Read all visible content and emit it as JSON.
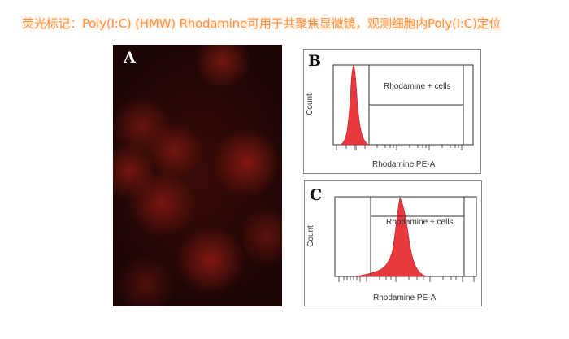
{
  "title": "荧光标记：Poly(I:C) (HMW) Rhodamine可用于共聚焦显微镜，观测细胞内Poly(I:C)定位",
  "colors": {
    "title": "#ff9440",
    "histogram_fill": "#e8393f",
    "micro_bg": "#1c0605"
  },
  "panels": {
    "a": {
      "letter": "A"
    },
    "b": {
      "letter": "B",
      "gate_label": "Rhodamine + cells",
      "x_label": "Rhodamine PE-A",
      "y_label": "Count"
    },
    "c": {
      "letter": "C",
      "gate_label": "Rhodamine + cells",
      "x_label": "Rhodamine PE-A",
      "y_label": "Count"
    }
  }
}
